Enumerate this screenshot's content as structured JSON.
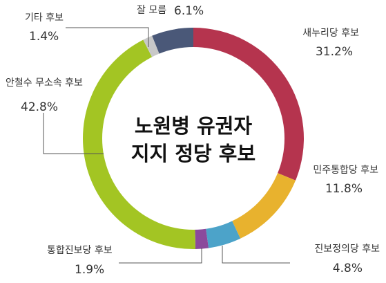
{
  "chart_data": {
    "type": "pie",
    "title_lines": [
      "노원병 유권자",
      "지지 정당 후보"
    ],
    "slices": [
      {
        "label": "새누리당 후보",
        "value": 31.2,
        "value_text": "31.2%",
        "color": "#b5344e"
      },
      {
        "label": "민주통합당 후보",
        "value": 11.8,
        "value_text": "11.8%",
        "color": "#e8b22e"
      },
      {
        "label": "진보정의당 후보",
        "value": 4.8,
        "value_text": "4.8%",
        "color": "#4ca3c9"
      },
      {
        "label": "통합진보당 후보",
        "value": 1.9,
        "value_text": "1.9%",
        "color": "#8b4a9c"
      },
      {
        "label": "안철수 무소속 후보",
        "value": 42.8,
        "value_text": "42.8%",
        "color": "#a3c523"
      },
      {
        "label": "기타 후보",
        "value": 1.4,
        "value_text": "1.4%",
        "color": "#c8c8c8"
      },
      {
        "label": "잘 모름",
        "value": 6.1,
        "value_text": "6.1%",
        "color": "#4a5878"
      }
    ]
  }
}
